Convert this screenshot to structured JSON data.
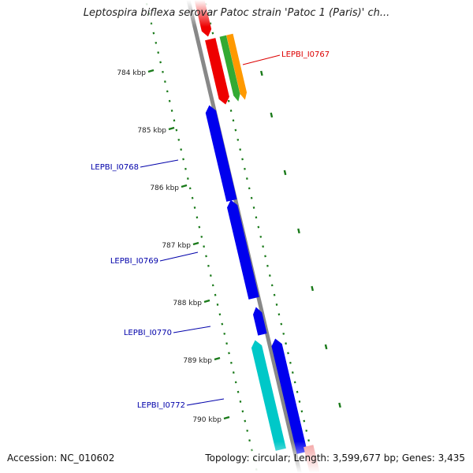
{
  "title": "Leptospira biflexa serovar Patoc strain 'Patoc 1 (Paris)' ch...",
  "footer": {
    "accession": "Accession: NC_010602",
    "summary": "Topology: circular; Length: 3,599,677 bp; Genes: 3,435"
  },
  "colors": {
    "backbone": "#888888",
    "tick": "#1a7a1a",
    "forward_gene": "#0000ee",
    "red_gene": "#ee0000",
    "green_gene": "#33aa33",
    "orange_gene": "#ff9900",
    "cyan_gene": "#00c8c8",
    "red_label": "#dd0000",
    "blue_label": "#0000aa"
  },
  "ticks": [
    "784 kbp",
    "785 kbp",
    "786 kbp",
    "787 kbp",
    "788 kbp",
    "789 kbp",
    "790 kbp"
  ],
  "gene_labels": [
    {
      "text": "LEPBI_I0767",
      "color": "red"
    },
    {
      "text": "LEPBI_I0768",
      "color": "blue"
    },
    {
      "text": "LEPBI_I0769",
      "color": "blue"
    },
    {
      "text": "LEPBI_I0770",
      "color": "blue"
    },
    {
      "text": "LEPBI_I0772",
      "color": "blue"
    }
  ]
}
